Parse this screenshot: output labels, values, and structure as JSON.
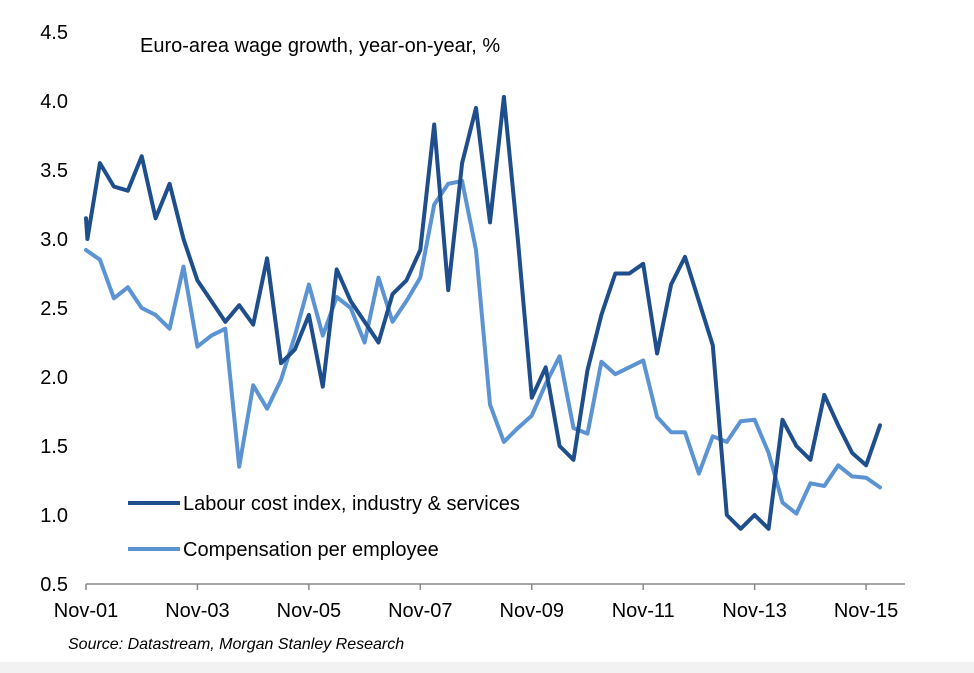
{
  "chart_data": {
    "type": "line",
    "title": "Euro-area wage growth, year-on-year, %",
    "xlabel": "",
    "ylabel": "",
    "ylim": [
      0.5,
      4.5
    ],
    "yticks": [
      0.5,
      1.0,
      1.5,
      2.0,
      2.5,
      3.0,
      3.5,
      4.0,
      4.5
    ],
    "ytick_labels": [
      "0.5",
      "1.0",
      "1.5",
      "2.0",
      "2.5",
      "3.0",
      "3.5",
      "4.0",
      "4.5"
    ],
    "xlim": [
      0,
      57
    ],
    "xticks": [
      0,
      8,
      16,
      24,
      32,
      40,
      48,
      56
    ],
    "xtick_labels": [
      "Nov-01",
      "Nov-03",
      "Nov-05",
      "Nov-07",
      "Nov-09",
      "Nov-11",
      "Nov-13",
      "Nov-15"
    ],
    "legend_position": "bottom-left",
    "colors": {
      "labour": "#1f4e8c",
      "compensation": "#5b93d3",
      "axis": "#888888"
    },
    "series": [
      {
        "name": "Labour cost index, industry & services",
        "x": [
          0,
          0.1,
          1,
          2,
          3,
          4,
          5,
          6,
          7,
          8,
          9,
          10,
          11,
          12,
          13,
          14,
          15,
          16,
          17,
          18,
          19,
          20,
          21,
          22,
          23,
          24,
          25,
          26,
          27,
          28,
          29,
          30,
          31,
          32,
          33,
          34,
          35,
          36,
          37,
          38,
          39,
          40,
          41,
          42,
          43,
          44,
          45,
          46,
          47,
          48,
          49,
          50,
          51,
          52,
          53,
          54,
          55,
          56,
          57
        ],
        "values": [
          3.15,
          3.0,
          3.55,
          3.38,
          3.35,
          3.6,
          3.15,
          3.4,
          3.0,
          2.7,
          2.55,
          2.4,
          2.52,
          2.38,
          2.86,
          2.1,
          2.2,
          2.45,
          1.93,
          2.78,
          2.55,
          2.4,
          2.25,
          2.6,
          2.7,
          2.92,
          3.83,
          2.63,
          3.55,
          3.95,
          3.12,
          4.03,
          3.0,
          1.85,
          2.07,
          1.5,
          1.4,
          2.05,
          2.45,
          2.75,
          2.75,
          2.82,
          2.17,
          2.67,
          2.87,
          2.55,
          2.23,
          1.0,
          0.9,
          1.0,
          0.9,
          1.69,
          1.5,
          1.4,
          1.87,
          1.65,
          1.45,
          1.36,
          1.65
        ]
      },
      {
        "name": "Compensation per employee",
        "x": [
          0,
          1,
          2,
          3,
          4,
          5,
          6,
          7,
          8,
          9,
          10,
          11,
          12,
          13,
          14,
          15,
          16,
          17,
          18,
          19,
          20,
          21,
          22,
          23,
          24,
          25,
          26,
          27,
          28,
          29,
          30,
          31,
          32,
          33,
          34,
          35,
          36,
          37,
          38,
          39,
          40,
          41,
          42,
          43,
          44,
          45,
          46,
          47,
          48,
          49,
          50,
          51,
          52,
          53,
          54,
          55,
          56,
          57
        ],
        "values": [
          2.92,
          2.85,
          2.57,
          2.65,
          2.5,
          2.45,
          2.35,
          2.8,
          2.22,
          2.3,
          2.35,
          1.35,
          1.94,
          1.77,
          1.98,
          2.3,
          2.67,
          2.3,
          2.58,
          2.5,
          2.25,
          2.72,
          2.4,
          2.55,
          2.72,
          3.25,
          3.4,
          3.42,
          2.92,
          1.8,
          1.53,
          1.63,
          1.72,
          1.95,
          2.15,
          1.63,
          1.59,
          2.11,
          2.02,
          2.07,
          2.12,
          1.71,
          1.6,
          1.6,
          1.3,
          1.57,
          1.53,
          1.68,
          1.69,
          1.45,
          1.09,
          1.01,
          1.23,
          1.21,
          1.36,
          1.28,
          1.27,
          1.2
        ]
      }
    ],
    "source": "Source: Datastream,  Morgan Stanley Research"
  }
}
